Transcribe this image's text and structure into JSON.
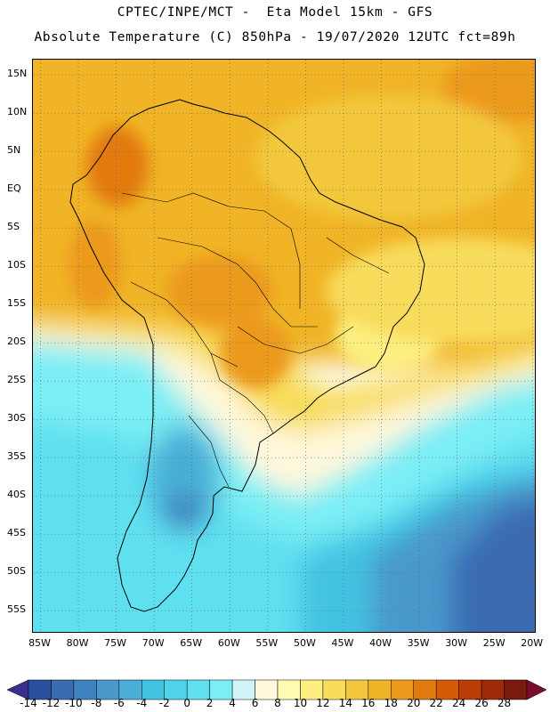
{
  "title": {
    "line1": "CPTEC/INPE/MCT -  Eta Model 15km - GFS",
    "line2": "Absolute Temperature (C) 850hPa - 19/07/2020 12UTC fct=89h"
  },
  "map": {
    "region": "South America",
    "variable": "Absolute Temperature (C) 850hPa",
    "lat_range": [
      -58,
      17
    ],
    "lon_range": [
      -86,
      -19.5
    ],
    "lat_labels": [
      "15N",
      "10N",
      "5N",
      "EQ",
      "5S",
      "10S",
      "15S",
      "20S",
      "25S",
      "30S",
      "35S",
      "40S",
      "45S",
      "50S",
      "55S"
    ],
    "lat_values": [
      15,
      10,
      5,
      0,
      -5,
      -10,
      -15,
      -20,
      -25,
      -30,
      -35,
      -40,
      -45,
      -50,
      -55
    ],
    "lon_labels": [
      "85W",
      "80W",
      "75W",
      "70W",
      "65W",
      "60W",
      "55W",
      "50W",
      "45W",
      "40W",
      "35W",
      "30W",
      "25W",
      "20W"
    ],
    "lon_values": [
      -85,
      -80,
      -75,
      -70,
      -65,
      -60,
      -55,
      -50,
      -45,
      -40,
      -35,
      -30,
      -25,
      -20
    ]
  },
  "colorbar": {
    "labels": [
      "-14",
      "-12",
      "-10",
      "-8",
      "-6",
      "-4",
      "-2",
      "0",
      "2",
      "4",
      "6",
      "8",
      "10",
      "12",
      "14",
      "16",
      "18",
      "20",
      "22",
      "24",
      "26",
      "28"
    ],
    "values": [
      -14,
      -12,
      -10,
      -8,
      -6,
      -4,
      -2,
      0,
      2,
      4,
      6,
      8,
      10,
      12,
      14,
      16,
      18,
      20,
      22,
      24,
      26,
      28
    ],
    "colors": [
      "#2a4f9c",
      "#3a6cb2",
      "#3f82c0",
      "#4a98cc",
      "#4aaed6",
      "#42c3e2",
      "#50d2ea",
      "#5ee0f0",
      "#7beef5",
      "#d2f4f8",
      "#fff8dc",
      "#fffbb0",
      "#fdf080",
      "#f8dc5c",
      "#f3c83e",
      "#f0b428",
      "#ec9a1e",
      "#e27a10",
      "#d45a08",
      "#bb3d06",
      "#9e2a0a",
      "#7a1a0e"
    ],
    "low_arrow_color": "#3a2f8c",
    "high_arrow_color": "#7a0e2a"
  }
}
